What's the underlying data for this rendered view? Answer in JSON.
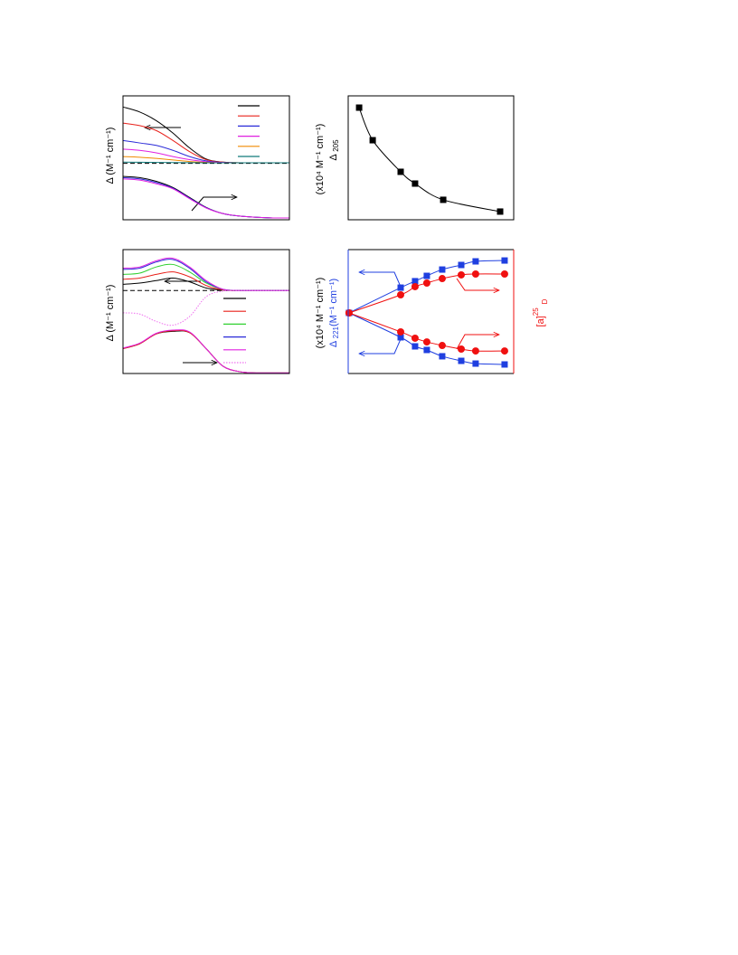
{
  "chart_data": [
    {
      "type": "line",
      "ylabel": "Δ  (M⁻¹ cm⁻¹)",
      "xlim": [
        0,
        100
      ],
      "ylim": [
        0,
        100
      ],
      "reference_line": 45.5,
      "x": [
        0,
        10,
        20,
        30,
        40,
        50,
        60,
        70,
        80,
        90,
        100
      ],
      "series": [
        {
          "color": "#000000",
          "values": [
            91,
            87,
            80,
            70,
            58,
            49,
            46.5,
            46,
            46,
            46,
            46
          ],
          "legend": true
        },
        {
          "color": "#e8201a",
          "values": [
            78,
            76,
            72,
            64,
            55,
            48.5,
            46.5,
            46,
            46,
            46,
            46
          ],
          "legend": true
        },
        {
          "color": "#2a2ad8",
          "values": [
            64,
            62,
            60,
            56,
            51,
            47.5,
            46.3,
            46,
            46,
            46,
            46
          ],
          "legend": true
        },
        {
          "color": "#e020e0",
          "values": [
            57,
            56,
            54,
            51,
            48.5,
            46.8,
            46.2,
            46,
            46,
            46,
            46
          ],
          "legend": true
        },
        {
          "color": "#f08a00",
          "values": [
            51,
            50.5,
            49.5,
            48.3,
            47,
            46.3,
            46,
            46,
            46,
            46,
            46
          ],
          "legend": true
        },
        {
          "color": "#107a7a",
          "values": [
            46.5,
            46.4,
            46.3,
            46.2,
            46.1,
            46,
            46,
            46,
            46,
            46,
            46
          ],
          "legend": true
        },
        {
          "color": "#000000",
          "values": [
            35,
            34,
            31,
            26,
            18,
            10,
            5,
            3,
            2,
            1.5,
            1.5
          ]
        },
        {
          "color": "#2a2ad8",
          "values": [
            34,
            33,
            30,
            25.5,
            17.5,
            9.8,
            5,
            3,
            2,
            1.5,
            1.5
          ]
        },
        {
          "color": "#e020e0",
          "values": [
            33,
            32,
            29,
            25,
            17,
            9.5,
            5,
            3,
            2,
            1.5,
            1.5
          ]
        }
      ]
    },
    {
      "type": "scatter",
      "ylabel": "(x10⁴ M⁻¹ cm⁻¹)",
      "ylabel_symbol": "Δ",
      "ylabel_subscript": "205",
      "xlim": [
        0,
        100
      ],
      "ylim": [
        0,
        100
      ],
      "x": [
        6.6,
        14.8,
        31.7,
        40.4,
        57.4,
        91.8
      ],
      "series": [
        {
          "color": "#000000",
          "marker": "square",
          "values": [
            90.5,
            64.2,
            38.7,
            29.2,
            16.1,
            6.6
          ]
        }
      ]
    },
    {
      "type": "line",
      "ylabel": "Δ  (M⁻¹ cm⁻¹)",
      "xlim": [
        0,
        100
      ],
      "ylim": [
        0,
        100
      ],
      "reference_line": 67,
      "x": [
        0,
        10,
        20,
        30,
        40,
        50,
        60,
        70,
        80,
        90,
        100
      ],
      "series": [
        {
          "color": "#000000",
          "values": [
            72,
            73,
            75,
            77,
            74,
            69,
            67.3,
            67,
            67,
            67,
            67
          ],
          "legend": true
        },
        {
          "color": "#e8201a",
          "values": [
            76,
            77,
            80,
            82,
            78,
            71,
            67.5,
            67,
            67,
            67,
            67
          ],
          "legend": true
        },
        {
          "color": "#30d030",
          "values": [
            80,
            81,
            86,
            88,
            82,
            73,
            68,
            67,
            67,
            67,
            67
          ],
          "legend": true
        },
        {
          "color": "#2a2ad8",
          "values": [
            84,
            85,
            90,
            92,
            85,
            74,
            68,
            67,
            67,
            67,
            67
          ],
          "legend": true
        },
        {
          "color": "#e020e0",
          "values": [
            85,
            86,
            91,
            93,
            86,
            75,
            68,
            67,
            67,
            67,
            67
          ],
          "legend": true
        },
        {
          "color": "#f070f0",
          "style": "dotted",
          "values": [
            49,
            48,
            42,
            39,
            46,
            62,
            66.5,
            67,
            67,
            67,
            67
          ],
          "legend": true
        },
        {
          "color": "#000000",
          "values": [
            20,
            24,
            32,
            34,
            33,
            20,
            6,
            1.5,
            0.5,
            0.5,
            0.5
          ]
        },
        {
          "color": "#e8201a",
          "values": [
            20,
            24,
            32,
            34.5,
            33,
            20,
            6,
            1.5,
            0.5,
            0.5,
            0.5
          ]
        },
        {
          "color": "#e020e0",
          "values": [
            20.5,
            24.5,
            32.5,
            35,
            33.5,
            20,
            6,
            1.5,
            0.5,
            0.5,
            0.5
          ]
        }
      ]
    },
    {
      "type": "scatter",
      "ylabel": "(x10⁴ M⁻¹ cm⁻¹)",
      "ylabel_symbol": "Δ",
      "ylabel_subscript": "221",
      "ylabel_unit": "(M⁻¹ cm⁻¹)",
      "y2label": "[a]",
      "y2label_sup": "25",
      "y2label_sub": "D",
      "xlim": [
        0,
        100
      ],
      "ylim": [
        0,
        100
      ],
      "y2lim": [
        0,
        100
      ],
      "x": [
        0.5,
        31.7,
        40.4,
        47.5,
        56.8,
        68.3,
        77,
        94.5
      ],
      "series": [
        {
          "color": "#1f3fe0",
          "marker": "square",
          "values": [
            48.9,
            69.3,
            74.5,
            78.8,
            83.9,
            87.6,
            90.5,
            91.2
          ]
        },
        {
          "color": "#f01010",
          "marker": "circle",
          "axis": "y2",
          "values": [
            48.9,
            63.5,
            70.1,
            73,
            76.6,
            79.6,
            80.3,
            80.3
          ]
        },
        {
          "color": "#1f3fe0",
          "marker": "square",
          "values": [
            48.9,
            29.2,
            21.9,
            19,
            13.9,
            10.2,
            8,
            7.3
          ]
        },
        {
          "color": "#f01010",
          "marker": "circle",
          "axis": "y2",
          "values": [
            48.9,
            33.6,
            28.5,
            25.5,
            22.6,
            19.7,
            18.2,
            18.2
          ]
        }
      ]
    }
  ]
}
